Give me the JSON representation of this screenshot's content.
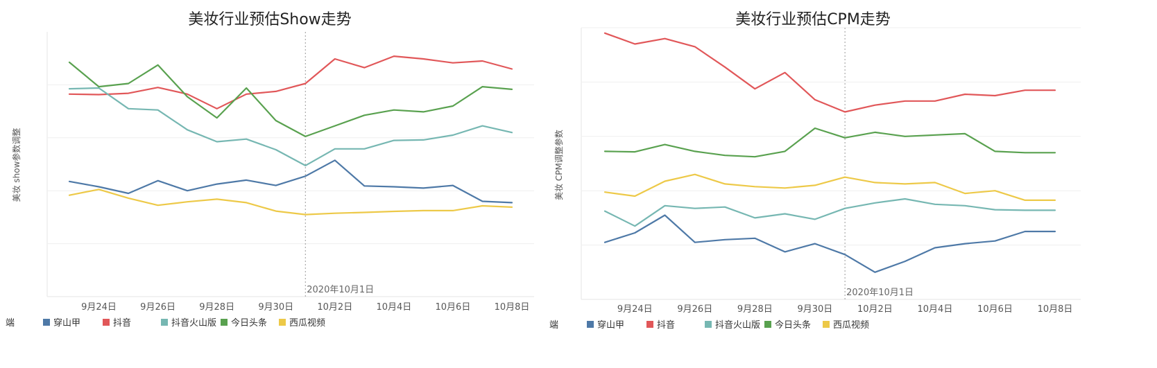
{
  "legend_title": "端",
  "chart_data": [
    {
      "type": "line",
      "title": "美妆行业预估Show走势",
      "ylabel": "美妆 show参数调整",
      "xlabel": "",
      "x": [
        "9月23日",
        "9月24日",
        "9月25日",
        "9月26日",
        "9月27日",
        "9月28日",
        "9月29日",
        "9月30日",
        "10月1日",
        "10月2日",
        "10月3日",
        "10月4日",
        "10月5日",
        "10月6日",
        "10月7日",
        "10月8日"
      ],
      "xtick_labels": [
        "9月24日",
        "9月26日",
        "9月28日",
        "9月30日",
        "10月2日",
        "10月4日",
        "10月6日",
        "10月8日"
      ],
      "ylim": [
        0,
        100
      ],
      "y_gridlines": [
        20,
        40,
        60,
        80
      ],
      "y_tick_labels_visible": false,
      "reference_line": {
        "x": "10月1日",
        "label": "2020年10月1日"
      },
      "legend_position": "bottom-left",
      "series": [
        {
          "name": "穿山甲",
          "color": "#4e79a7",
          "values": [
            43.5,
            41.5,
            39,
            43.8,
            40,
            42.5,
            44,
            42,
            45.5,
            51.5,
            41.8,
            41.5,
            41,
            42,
            36,
            35.5
          ]
        },
        {
          "name": "抖音",
          "color": "#e15759",
          "values": [
            76.5,
            76.3,
            76.8,
            79,
            76.5,
            71,
            76.5,
            77.5,
            80.5,
            89.8,
            86.5,
            90.8,
            89.8,
            88.3,
            89,
            86
          ]
        },
        {
          "name": "抖音火山版",
          "color": "#76b7b2",
          "values": [
            78.5,
            78.8,
            71,
            70.5,
            63,
            58.5,
            59.5,
            55.5,
            49.5,
            55.8,
            55.8,
            59,
            59.2,
            61,
            64.5,
            62
          ]
        },
        {
          "name": "今日头条",
          "color": "#59a14f",
          "values": [
            88.5,
            79.3,
            80.5,
            87.5,
            75.5,
            67.5,
            78.8,
            66.5,
            60.5,
            64.5,
            68.5,
            70.5,
            69.8,
            72,
            79.3,
            78.3
          ]
        },
        {
          "name": "西瓜视频",
          "color": "#edc948",
          "values": [
            38.3,
            40.5,
            37.2,
            34.5,
            35.8,
            36.8,
            35.5,
            32.3,
            31,
            31.5,
            31.8,
            32.2,
            32.5,
            32.5,
            34.3,
            33.8
          ]
        }
      ]
    },
    {
      "type": "line",
      "title": "美妆行业预估CPM走势",
      "ylabel": "美妆 CPM调整参数",
      "xlabel": "",
      "x": [
        "9月23日",
        "9月24日",
        "9月25日",
        "9月26日",
        "9月27日",
        "9月28日",
        "9月29日",
        "9月30日",
        "10月1日",
        "10月2日",
        "10月3日",
        "10月4日",
        "10月5日",
        "10月6日",
        "10月7日",
        "10月8日"
      ],
      "xtick_labels": [
        "9月24日",
        "9月26日",
        "9月28日",
        "9月30日",
        "10月2日",
        "10月4日",
        "10月6日",
        "10月8日"
      ],
      "ylim": [
        0,
        100
      ],
      "y_gridlines": [
        20,
        40,
        60,
        80,
        100
      ],
      "y_tick_labels_visible": false,
      "reference_line": {
        "x": "10月1日",
        "label": "2020年10月1日"
      },
      "legend_position": "bottom-left",
      "series": [
        {
          "name": "穿山甲",
          "color": "#4e79a7",
          "values": [
            21,
            24.5,
            31,
            21,
            22,
            22.5,
            17.5,
            20.5,
            16.5,
            10,
            14,
            19,
            20.5,
            21.5,
            25,
            25
          ]
        },
        {
          "name": "抖音",
          "color": "#e15759",
          "values": [
            98,
            94,
            96,
            93,
            85.5,
            77.5,
            83.5,
            73.5,
            69,
            71.5,
            73,
            73,
            75.5,
            75,
            77,
            77
          ]
        },
        {
          "name": "抖音火山版",
          "color": "#76b7b2",
          "values": [
            32.5,
            27,
            34.5,
            33.5,
            34,
            30,
            31.5,
            29.5,
            33.5,
            35.5,
            37,
            35,
            34.5,
            33,
            32.8,
            32.8
          ]
        },
        {
          "name": "今日头条",
          "color": "#59a14f",
          "values": [
            54.5,
            54.3,
            57,
            54.5,
            53,
            52.5,
            54.5,
            63,
            59.5,
            61.5,
            60,
            60.5,
            61,
            54.5,
            54,
            54
          ]
        },
        {
          "name": "西瓜视频",
          "color": "#edc948",
          "values": [
            39.5,
            38,
            43.5,
            46,
            42.5,
            41.5,
            41,
            42,
            45,
            43,
            42.5,
            43,
            39,
            40,
            36.5,
            36.5
          ]
        }
      ]
    }
  ]
}
